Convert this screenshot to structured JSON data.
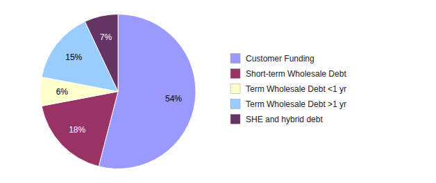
{
  "chart_data": {
    "type": "pie",
    "categories": [
      "Customer Funding",
      "Short-term Wholesale Debt",
      "Term Wholesale Debt <1 yr",
      "Term Wholesale Debt >1 yr",
      "SHE and hybrid debt"
    ],
    "values": [
      54,
      18,
      6,
      15,
      7
    ],
    "value_labels": [
      "54%",
      "18%",
      "6%",
      "15%",
      "7%"
    ],
    "colors": [
      "#9999FF",
      "#993366",
      "#FFFFCC",
      "#99CCFF",
      "#663366"
    ],
    "data_labels": true,
    "legend": "right"
  }
}
